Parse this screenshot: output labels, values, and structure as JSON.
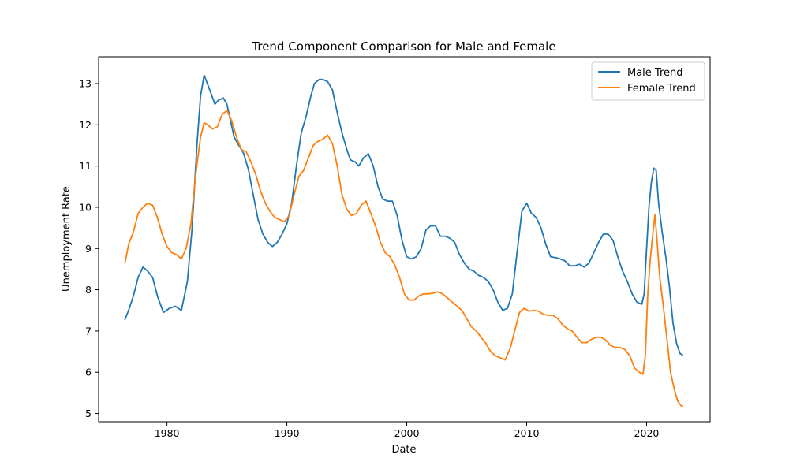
{
  "chart_data": {
    "type": "line",
    "title": "Trend Component Comparison for Male and Female",
    "xlabel": "Date",
    "ylabel": "Unemployment Rate",
    "xlim": [
      1974.3,
      2025.3
    ],
    "ylim": [
      4.8,
      13.65
    ],
    "xticks": [
      1980,
      1990,
      2000,
      2010,
      2020
    ],
    "yticks": [
      5,
      6,
      7,
      8,
      9,
      10,
      11,
      12,
      13
    ],
    "grid": false,
    "legend_position": "top-right",
    "series": [
      {
        "name": "Male Trend",
        "color": "#1f77b4",
        "points": [
          [
            1976.5,
            7.28
          ],
          [
            1976.8,
            7.5
          ],
          [
            1977.2,
            7.85
          ],
          [
            1977.6,
            8.3
          ],
          [
            1978.0,
            8.55
          ],
          [
            1978.4,
            8.45
          ],
          [
            1978.8,
            8.3
          ],
          [
            1979.2,
            7.85
          ],
          [
            1979.7,
            7.45
          ],
          [
            1980.2,
            7.55
          ],
          [
            1980.7,
            7.6
          ],
          [
            1981.2,
            7.5
          ],
          [
            1981.7,
            8.2
          ],
          [
            1982.1,
            9.5
          ],
          [
            1982.5,
            11.5
          ],
          [
            1982.8,
            12.7
          ],
          [
            1983.1,
            13.2
          ],
          [
            1983.5,
            12.9
          ],
          [
            1984.0,
            12.5
          ],
          [
            1984.3,
            12.6
          ],
          [
            1984.7,
            12.65
          ],
          [
            1985.0,
            12.5
          ],
          [
            1985.3,
            12.1
          ],
          [
            1985.6,
            11.7
          ],
          [
            1986.0,
            11.5
          ],
          [
            1986.4,
            11.3
          ],
          [
            1986.8,
            10.9
          ],
          [
            1987.2,
            10.3
          ],
          [
            1987.6,
            9.7
          ],
          [
            1988.0,
            9.35
          ],
          [
            1988.4,
            9.15
          ],
          [
            1988.8,
            9.05
          ],
          [
            1989.2,
            9.15
          ],
          [
            1989.6,
            9.35
          ],
          [
            1990.0,
            9.6
          ],
          [
            1990.4,
            10.1
          ],
          [
            1990.8,
            11.0
          ],
          [
            1991.2,
            11.8
          ],
          [
            1991.6,
            12.2
          ],
          [
            1992.0,
            12.7
          ],
          [
            1992.3,
            13.0
          ],
          [
            1992.7,
            13.1
          ],
          [
            1993.0,
            13.1
          ],
          [
            1993.4,
            13.05
          ],
          [
            1993.8,
            12.85
          ],
          [
            1994.2,
            12.3
          ],
          [
            1994.6,
            11.8
          ],
          [
            1995.0,
            11.4
          ],
          [
            1995.3,
            11.15
          ],
          [
            1995.7,
            11.1
          ],
          [
            1996.0,
            11.0
          ],
          [
            1996.4,
            11.2
          ],
          [
            1996.8,
            11.3
          ],
          [
            1997.2,
            11.0
          ],
          [
            1997.6,
            10.5
          ],
          [
            1998.0,
            10.2
          ],
          [
            1998.4,
            10.15
          ],
          [
            1998.8,
            10.15
          ],
          [
            1999.2,
            9.8
          ],
          [
            1999.6,
            9.2
          ],
          [
            2000.0,
            8.8
          ],
          [
            2000.4,
            8.75
          ],
          [
            2000.8,
            8.8
          ],
          [
            2001.2,
            9.0
          ],
          [
            2001.6,
            9.45
          ],
          [
            2002.0,
            9.55
          ],
          [
            2002.4,
            9.55
          ],
          [
            2002.8,
            9.3
          ],
          [
            2003.2,
            9.3
          ],
          [
            2003.6,
            9.25
          ],
          [
            2004.0,
            9.15
          ],
          [
            2004.4,
            8.85
          ],
          [
            2004.8,
            8.65
          ],
          [
            2005.2,
            8.5
          ],
          [
            2005.6,
            8.45
          ],
          [
            2006.0,
            8.35
          ],
          [
            2006.4,
            8.3
          ],
          [
            2006.8,
            8.2
          ],
          [
            2007.2,
            8.0
          ],
          [
            2007.6,
            7.7
          ],
          [
            2008.0,
            7.5
          ],
          [
            2008.4,
            7.55
          ],
          [
            2008.8,
            7.9
          ],
          [
            2009.2,
            8.9
          ],
          [
            2009.6,
            9.9
          ],
          [
            2010.0,
            10.1
          ],
          [
            2010.4,
            9.85
          ],
          [
            2010.8,
            9.75
          ],
          [
            2011.2,
            9.5
          ],
          [
            2011.6,
            9.1
          ],
          [
            2012.0,
            8.8
          ],
          [
            2012.4,
            8.78
          ],
          [
            2012.8,
            8.75
          ],
          [
            2013.2,
            8.7
          ],
          [
            2013.6,
            8.58
          ],
          [
            2014.0,
            8.58
          ],
          [
            2014.4,
            8.62
          ],
          [
            2014.8,
            8.55
          ],
          [
            2015.2,
            8.65
          ],
          [
            2015.6,
            8.9
          ],
          [
            2016.0,
            9.15
          ],
          [
            2016.4,
            9.35
          ],
          [
            2016.8,
            9.35
          ],
          [
            2017.2,
            9.2
          ],
          [
            2017.6,
            8.8
          ],
          [
            2018.0,
            8.45
          ],
          [
            2018.4,
            8.2
          ],
          [
            2018.8,
            7.9
          ],
          [
            2019.2,
            7.7
          ],
          [
            2019.6,
            7.65
          ],
          [
            2019.8,
            7.9
          ],
          [
            2020.0,
            9.0
          ],
          [
            2020.2,
            10.0
          ],
          [
            2020.4,
            10.6
          ],
          [
            2020.6,
            10.95
          ],
          [
            2020.8,
            10.9
          ],
          [
            2021.0,
            10.1
          ],
          [
            2021.3,
            9.4
          ],
          [
            2021.6,
            8.8
          ],
          [
            2021.9,
            8.1
          ],
          [
            2022.2,
            7.2
          ],
          [
            2022.5,
            6.7
          ],
          [
            2022.8,
            6.45
          ],
          [
            2023.0,
            6.42
          ]
        ]
      },
      {
        "name": "Female Trend",
        "color": "#ff7f0e",
        "points": [
          [
            1976.5,
            8.65
          ],
          [
            1976.8,
            9.1
          ],
          [
            1977.2,
            9.4
          ],
          [
            1977.6,
            9.85
          ],
          [
            1978.0,
            10.0
          ],
          [
            1978.4,
            10.1
          ],
          [
            1978.8,
            10.05
          ],
          [
            1979.2,
            9.75
          ],
          [
            1979.6,
            9.35
          ],
          [
            1980.0,
            9.05
          ],
          [
            1980.4,
            8.9
          ],
          [
            1980.8,
            8.85
          ],
          [
            1981.2,
            8.75
          ],
          [
            1981.6,
            9.0
          ],
          [
            1982.0,
            9.6
          ],
          [
            1982.4,
            10.8
          ],
          [
            1982.8,
            11.7
          ],
          [
            1983.1,
            12.05
          ],
          [
            1983.4,
            12.0
          ],
          [
            1983.8,
            11.9
          ],
          [
            1984.2,
            11.95
          ],
          [
            1984.6,
            12.25
          ],
          [
            1985.0,
            12.35
          ],
          [
            1985.4,
            12.1
          ],
          [
            1985.8,
            11.7
          ],
          [
            1986.2,
            11.4
          ],
          [
            1986.6,
            11.35
          ],
          [
            1987.0,
            11.1
          ],
          [
            1987.4,
            10.8
          ],
          [
            1987.8,
            10.4
          ],
          [
            1988.2,
            10.1
          ],
          [
            1988.6,
            9.9
          ],
          [
            1989.0,
            9.75
          ],
          [
            1989.4,
            9.7
          ],
          [
            1989.8,
            9.65
          ],
          [
            1990.2,
            9.8
          ],
          [
            1990.6,
            10.3
          ],
          [
            1991.0,
            10.75
          ],
          [
            1991.4,
            10.9
          ],
          [
            1991.8,
            11.2
          ],
          [
            1992.2,
            11.5
          ],
          [
            1992.6,
            11.6
          ],
          [
            1993.0,
            11.65
          ],
          [
            1993.4,
            11.75
          ],
          [
            1993.8,
            11.55
          ],
          [
            1994.2,
            11.0
          ],
          [
            1994.6,
            10.3
          ],
          [
            1995.0,
            9.95
          ],
          [
            1995.4,
            9.8
          ],
          [
            1995.8,
            9.85
          ],
          [
            1996.2,
            10.05
          ],
          [
            1996.6,
            10.15
          ],
          [
            1997.0,
            9.85
          ],
          [
            1997.4,
            9.55
          ],
          [
            1997.8,
            9.15
          ],
          [
            1998.2,
            8.9
          ],
          [
            1998.6,
            8.8
          ],
          [
            1999.0,
            8.6
          ],
          [
            1999.4,
            8.3
          ],
          [
            1999.8,
            7.9
          ],
          [
            2000.2,
            7.75
          ],
          [
            2000.6,
            7.75
          ],
          [
            2001.0,
            7.85
          ],
          [
            2001.4,
            7.9
          ],
          [
            2001.8,
            7.9
          ],
          [
            2002.2,
            7.92
          ],
          [
            2002.6,
            7.95
          ],
          [
            2003.0,
            7.9
          ],
          [
            2003.4,
            7.8
          ],
          [
            2003.8,
            7.7
          ],
          [
            2004.2,
            7.6
          ],
          [
            2004.6,
            7.5
          ],
          [
            2005.0,
            7.3
          ],
          [
            2005.4,
            7.1
          ],
          [
            2005.8,
            7.0
          ],
          [
            2006.2,
            6.85
          ],
          [
            2006.6,
            6.7
          ],
          [
            2007.0,
            6.5
          ],
          [
            2007.4,
            6.4
          ],
          [
            2007.8,
            6.35
          ],
          [
            2008.2,
            6.3
          ],
          [
            2008.6,
            6.55
          ],
          [
            2009.0,
            7.0
          ],
          [
            2009.4,
            7.45
          ],
          [
            2009.8,
            7.55
          ],
          [
            2010.2,
            7.48
          ],
          [
            2010.6,
            7.5
          ],
          [
            2011.0,
            7.48
          ],
          [
            2011.4,
            7.4
          ],
          [
            2011.8,
            7.38
          ],
          [
            2012.2,
            7.38
          ],
          [
            2012.6,
            7.3
          ],
          [
            2013.0,
            7.15
          ],
          [
            2013.4,
            7.05
          ],
          [
            2013.8,
            7.0
          ],
          [
            2014.2,
            6.85
          ],
          [
            2014.6,
            6.72
          ],
          [
            2015.0,
            6.72
          ],
          [
            2015.4,
            6.8
          ],
          [
            2015.8,
            6.85
          ],
          [
            2016.2,
            6.85
          ],
          [
            2016.6,
            6.78
          ],
          [
            2017.0,
            6.65
          ],
          [
            2017.4,
            6.6
          ],
          [
            2017.8,
            6.6
          ],
          [
            2018.2,
            6.55
          ],
          [
            2018.6,
            6.4
          ],
          [
            2019.0,
            6.1
          ],
          [
            2019.4,
            6.0
          ],
          [
            2019.7,
            5.95
          ],
          [
            2019.9,
            6.4
          ],
          [
            2020.1,
            7.9
          ],
          [
            2020.3,
            8.7
          ],
          [
            2020.5,
            9.3
          ],
          [
            2020.7,
            9.82
          ],
          [
            2020.9,
            9.1
          ],
          [
            2021.1,
            8.3
          ],
          [
            2021.4,
            7.6
          ],
          [
            2021.7,
            6.8
          ],
          [
            2022.0,
            6.0
          ],
          [
            2022.3,
            5.6
          ],
          [
            2022.6,
            5.3
          ],
          [
            2022.9,
            5.18
          ],
          [
            2023.0,
            5.18
          ]
        ]
      }
    ]
  }
}
